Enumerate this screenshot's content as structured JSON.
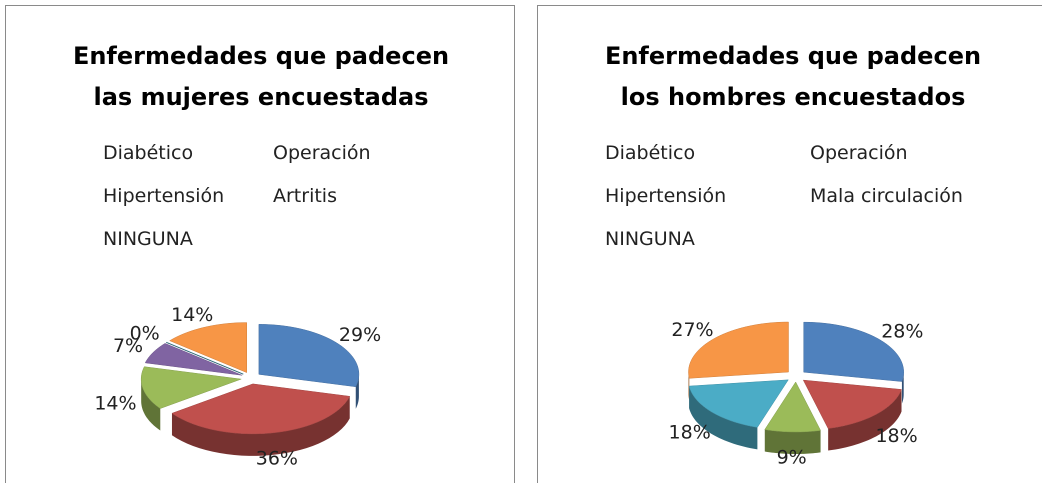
{
  "chart_data": [
    {
      "type": "pie",
      "title": "Enfermedades que padecen las mujeres encuestadas",
      "categories": [
        "Diabético",
        "Operación",
        "Hipertensión",
        "Artritis",
        null,
        "NINGUNA"
      ],
      "values": [
        29,
        36,
        14,
        7,
        0,
        14
      ],
      "value_labels": [
        "29%",
        "36%",
        "14%",
        "7%",
        "0%",
        "14%"
      ],
      "colors": [
        "#4f81bd",
        "#c0504d",
        "#9bbb59",
        "#8064a2",
        "#4bacc6",
        "#f79646"
      ],
      "legend": "top"
    },
    {
      "type": "pie",
      "title": "Enfermedades que padecen los hombres encuestados",
      "categories": [
        "Diabético",
        "Operación",
        "Hipertensión",
        "Mala circulación",
        "NINGUNA"
      ],
      "values": [
        28,
        18,
        9,
        18,
        27
      ],
      "value_labels": [
        "28%",
        "18%",
        "9%",
        "18%",
        "27%"
      ],
      "colors": [
        "#4f81bd",
        "#c0504d",
        "#9bbb59",
        "#4bacc6",
        "#f79646"
      ],
      "legend": "top"
    }
  ]
}
